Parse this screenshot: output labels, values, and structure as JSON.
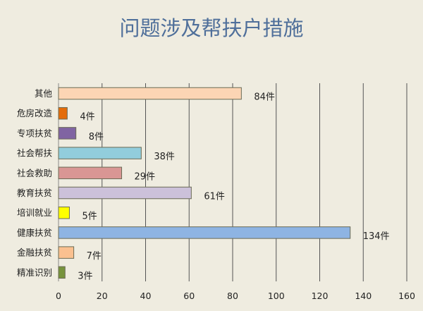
{
  "chart_data": {
    "type": "bar",
    "orientation": "horizontal",
    "title": "问题涉及帮扶户措施",
    "unit_suffix": "件",
    "categories": [
      "其他",
      "危房改造",
      "专项扶贫",
      "社会帮扶",
      "社会救助",
      "教育扶贫",
      "培训就业",
      "健康扶贫",
      "金融扶贫",
      "精准识别"
    ],
    "values": [
      84,
      4,
      8,
      38,
      29,
      61,
      5,
      134,
      7,
      3
    ],
    "data_labels": [
      "84件",
      "4件",
      "8件",
      "38件",
      "29件",
      "61件",
      "5件",
      "134件",
      "7件",
      "3件"
    ],
    "colors": [
      "#fcd5b4",
      "#e46c0a",
      "#8064a2",
      "#92cddc",
      "#d99694",
      "#ccc1da",
      "#ffff00",
      "#8eb4e3",
      "#fac090",
      "#77933c"
    ],
    "xlim": [
      0,
      160
    ],
    "xticks": [
      0,
      20,
      40,
      60,
      80,
      100,
      120,
      140,
      160
    ],
    "xlabel": "",
    "ylabel": "",
    "grid": "vertical",
    "legend": "none"
  }
}
